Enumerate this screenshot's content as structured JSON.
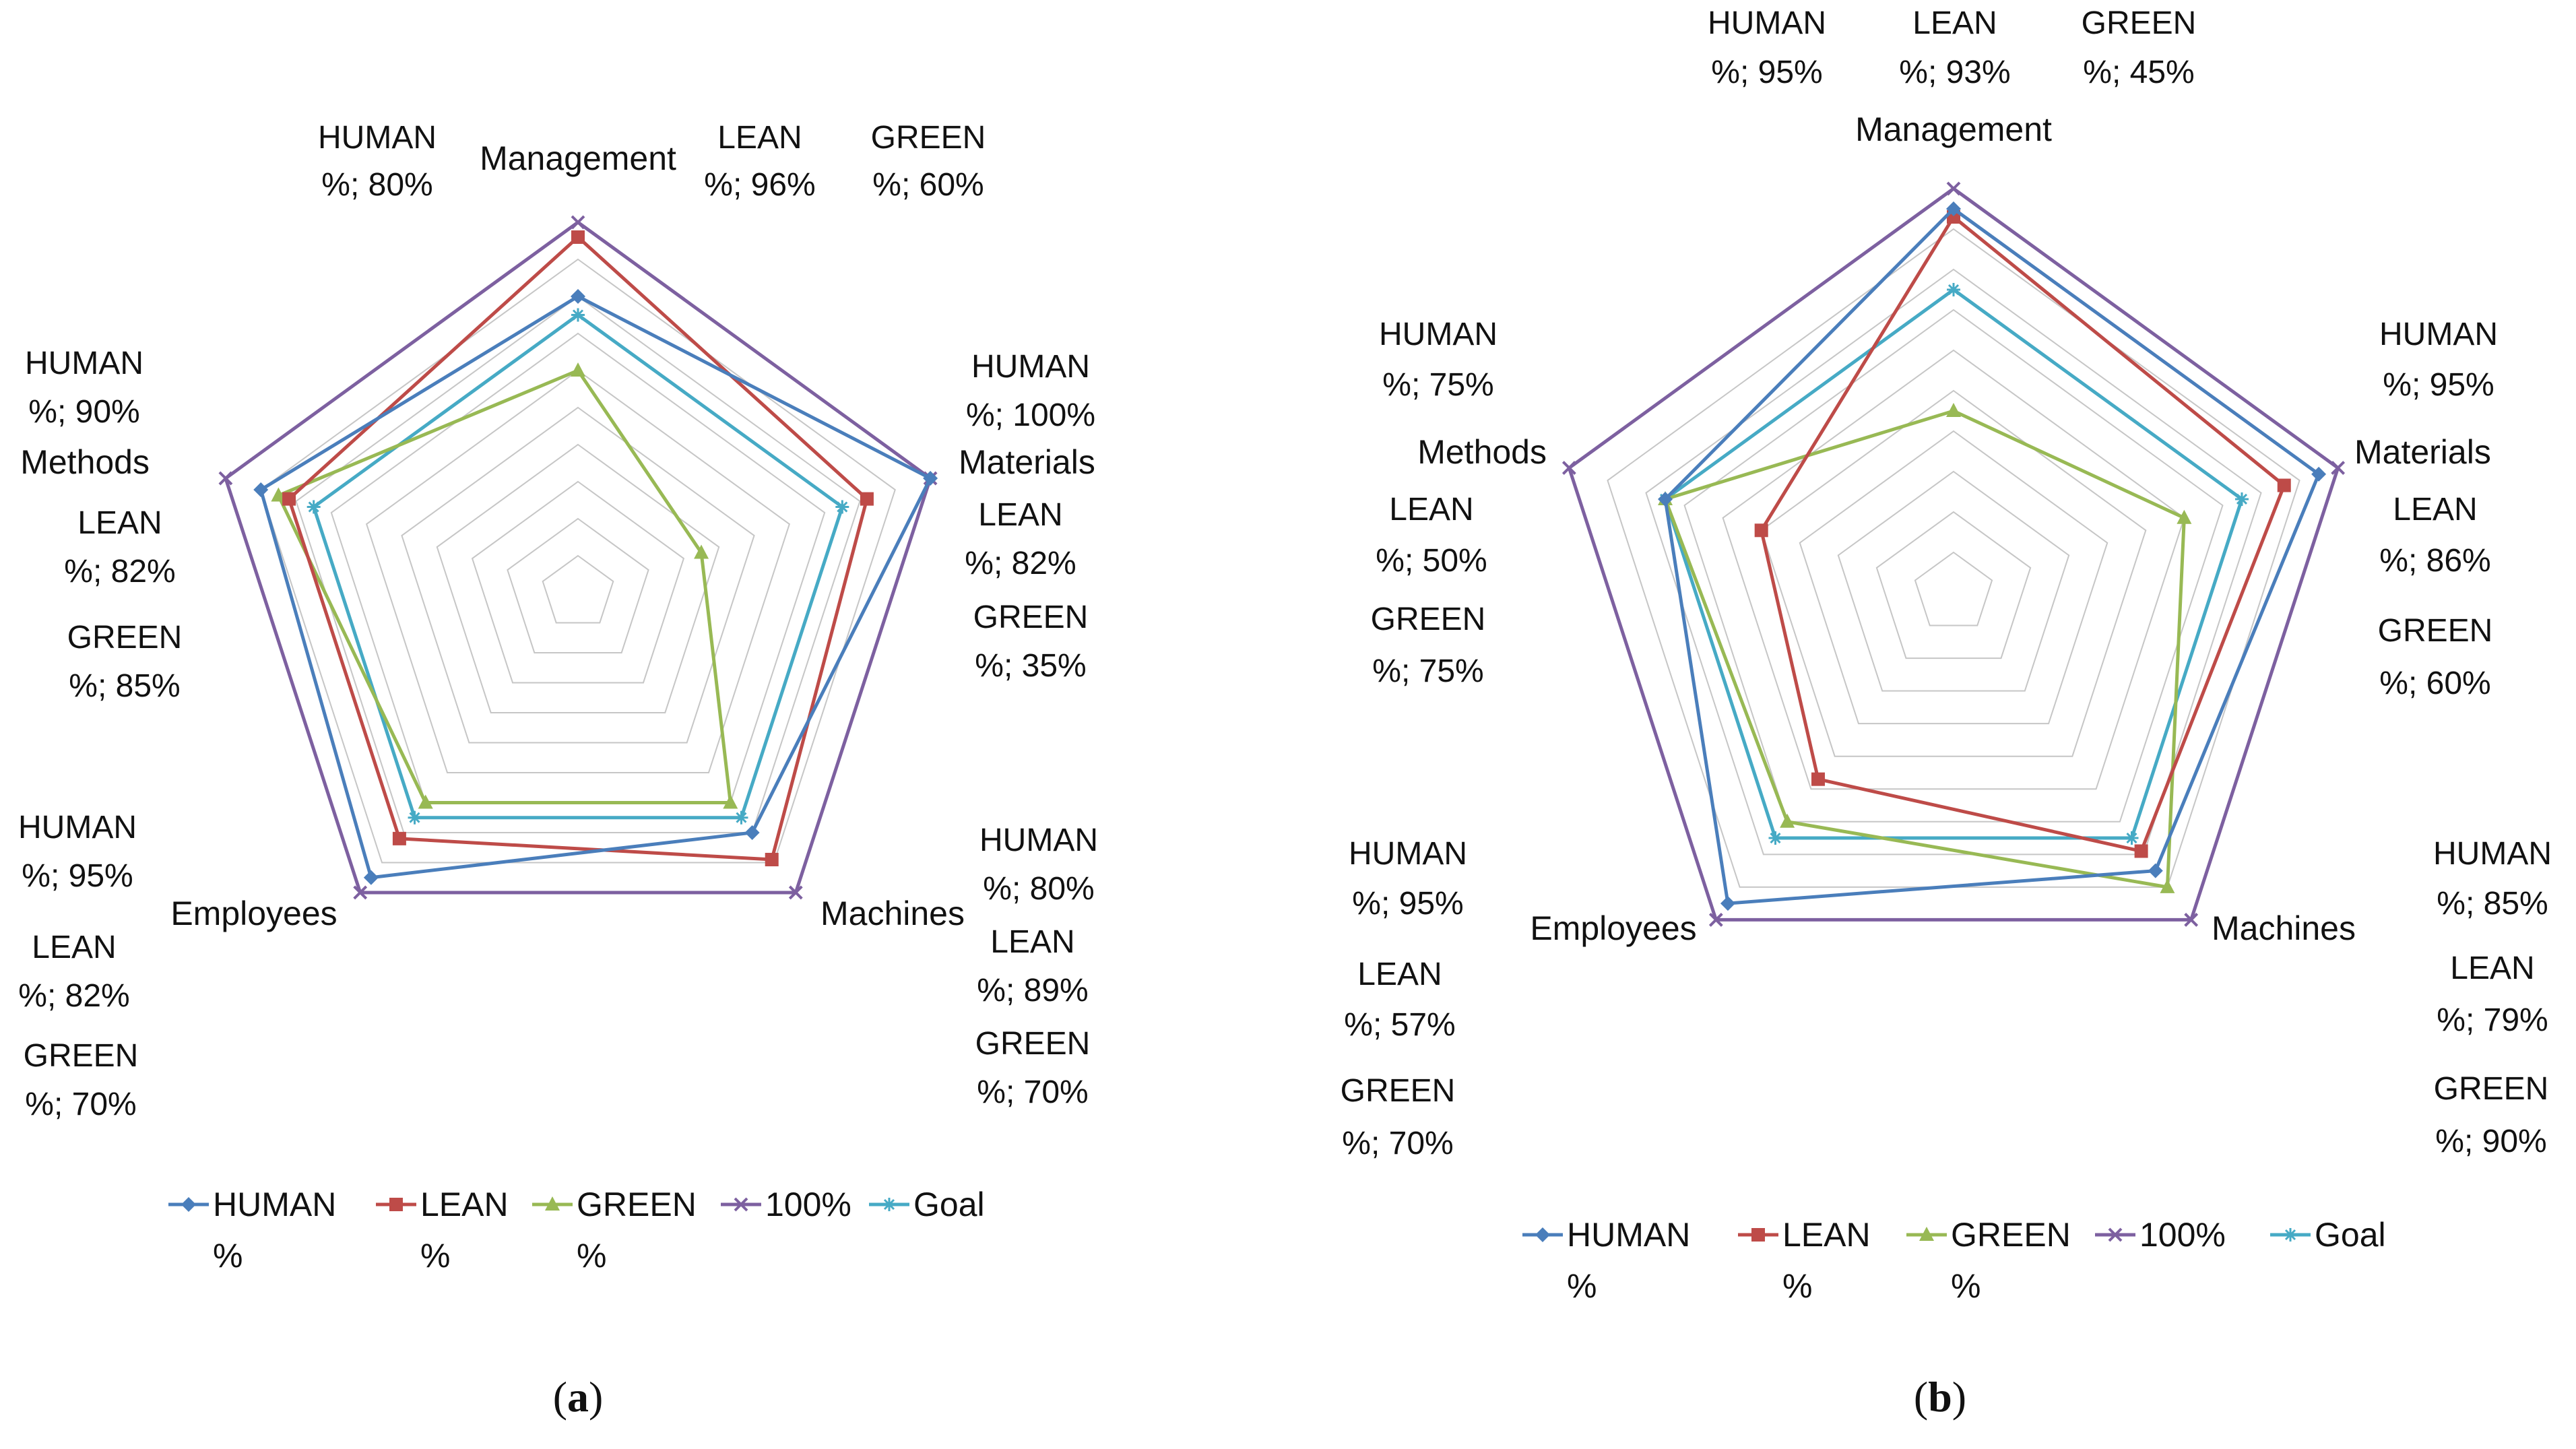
{
  "chart_data": [
    {
      "type": "radar",
      "panel": "a",
      "caption": "(a)",
      "caption_open": "(",
      "caption_letter": "a",
      "caption_close": ")",
      "axes": [
        "Management",
        "Materials",
        "Machines",
        "Employees",
        "Methods"
      ],
      "rings": 10,
      "range": [
        0,
        100
      ],
      "series": [
        {
          "name": "HUMAN %",
          "legend": [
            "HUMAN",
            "%"
          ],
          "color": "#4a7ebb",
          "marker": "diamond",
          "values": [
            80,
            100,
            80,
            95,
            90
          ]
        },
        {
          "name": "LEAN %",
          "legend": [
            "LEAN",
            "%"
          ],
          "color": "#be4b48",
          "marker": "square",
          "values": [
            96,
            82,
            89,
            82,
            82
          ]
        },
        {
          "name": "GREEN %",
          "legend": [
            "GREEN",
            "%"
          ],
          "color": "#98b954",
          "marker": "triangle",
          "values": [
            60,
            35,
            70,
            70,
            85
          ]
        },
        {
          "name": "100%",
          "legend": [
            "100%"
          ],
          "color": "#7d60a0",
          "marker": "x",
          "values": [
            100,
            100,
            100,
            100,
            100
          ]
        },
        {
          "name": "Goal",
          "legend": [
            "Goal"
          ],
          "color": "#46aac5",
          "marker": "star",
          "values": [
            75,
            75,
            75,
            75,
            75
          ]
        }
      ],
      "annotations": [
        [
          "HUMAN",
          "%; 80%"
        ],
        [
          "LEAN",
          "%; 96%"
        ],
        [
          "GREEN",
          "%; 60%"
        ],
        [
          "HUMAN",
          "%; 100%"
        ],
        [
          "LEAN",
          "%; 82%"
        ],
        [
          "GREEN",
          "%; 35%"
        ],
        [
          "HUMAN",
          "%; 80%"
        ],
        [
          "LEAN",
          "%; 89%"
        ],
        [
          "GREEN",
          "%; 70%"
        ],
        [
          "HUMAN",
          "%; 95%"
        ],
        [
          "LEAN",
          "%; 82%"
        ],
        [
          "GREEN",
          "%; 70%"
        ],
        [
          "HUMAN",
          "%; 90%"
        ],
        [
          "LEAN",
          "%; 82%"
        ],
        [
          "GREEN",
          "%; 85%"
        ]
      ]
    },
    {
      "type": "radar",
      "panel": "b",
      "caption": "(b)",
      "caption_open": "(",
      "caption_letter": "b",
      "caption_close": ")",
      "axes": [
        "Management",
        "Materials",
        "Machines",
        "Employees",
        "Methods"
      ],
      "rings": 10,
      "range": [
        0,
        100
      ],
      "series": [
        {
          "name": "HUMAN %",
          "legend": [
            "HUMAN",
            "%"
          ],
          "color": "#4a7ebb",
          "marker": "diamond",
          "values": [
            95,
            95,
            85,
            95,
            75
          ]
        },
        {
          "name": "LEAN %",
          "legend": [
            "LEAN",
            "%"
          ],
          "color": "#be4b48",
          "marker": "square",
          "values": [
            93,
            86,
            79,
            57,
            50
          ]
        },
        {
          "name": "GREEN %",
          "legend": [
            "GREEN",
            "%"
          ],
          "color": "#98b954",
          "marker": "triangle",
          "values": [
            45,
            60,
            90,
            70,
            75
          ]
        },
        {
          "name": "100%",
          "legend": [
            "100%"
          ],
          "color": "#7d60a0",
          "marker": "x",
          "values": [
            100,
            100,
            100,
            100,
            100
          ]
        },
        {
          "name": "Goal",
          "legend": [
            "Goal"
          ],
          "color": "#46aac5",
          "marker": "star",
          "values": [
            75,
            75,
            75,
            75,
            75
          ]
        }
      ],
      "annotations": [
        [
          "HUMAN",
          "%; 95%"
        ],
        [
          "LEAN",
          "%; 93%"
        ],
        [
          "GREEN",
          "%; 45%"
        ],
        [
          "HUMAN",
          "%; 95%"
        ],
        [
          "LEAN",
          "%; 86%"
        ],
        [
          "GREEN",
          "%; 60%"
        ],
        [
          "HUMAN",
          "%; 85%"
        ],
        [
          "LEAN",
          "%; 79%"
        ],
        [
          "GREEN",
          "%; 90%"
        ],
        [
          "HUMAN",
          "%; 95%"
        ],
        [
          "LEAN",
          "%; 57%"
        ],
        [
          "GREEN",
          "%; 70%"
        ],
        [
          "HUMAN",
          "%; 75%"
        ],
        [
          "LEAN",
          "%; 50%"
        ],
        [
          "GREEN",
          "%; 75%"
        ]
      ]
    }
  ],
  "grid_color": "#c6c6c6"
}
